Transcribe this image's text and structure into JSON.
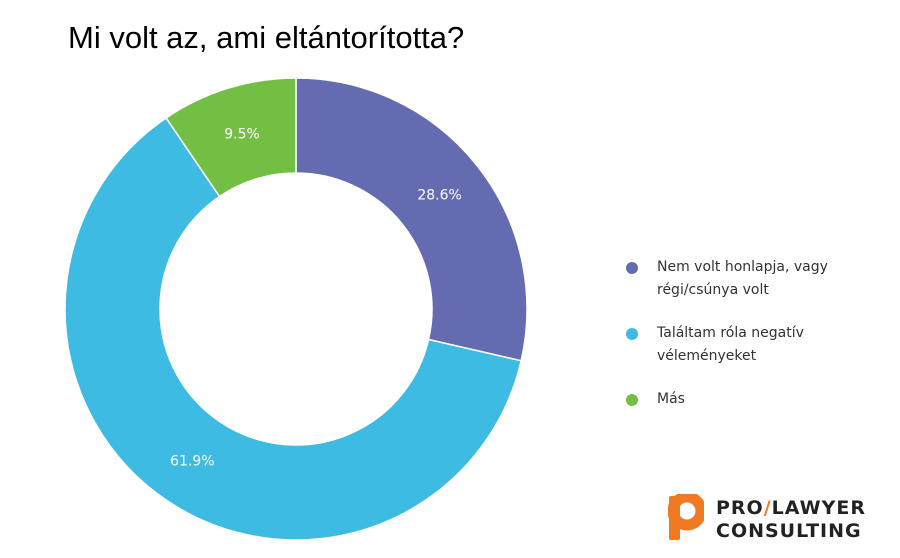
{
  "chart_data": {
    "type": "pie",
    "title": "Mi volt az, ami eltántorította?",
    "categories": [
      "Nem volt honlapja, vagy régi/csúnya volt",
      "Találtam róla negatív véleményeket",
      "Más"
    ],
    "values": [
      28.6,
      61.9,
      9.5
    ],
    "value_labels": [
      "28.6%",
      "61.9%",
      "9.5%"
    ],
    "colors": [
      "#646bb1",
      "#3dbbe3",
      "#72bf44"
    ],
    "legend": "right",
    "donut": true
  },
  "legend_items": [
    {
      "line1": "Nem volt honlapja, vagy",
      "line2": "régi/csúnya volt",
      "color": "#646bb1"
    },
    {
      "line1": "Találtam róla negatív",
      "line2": "véleményeket",
      "color": "#3dbbe3"
    },
    {
      "line1": "Más",
      "line2": "",
      "color": "#72bf44"
    }
  ],
  "logo": {
    "pro": "PRO",
    "slash": "/",
    "lawyer": "LAWYER",
    "consulting": "CONSULTING",
    "accent": "#f07a22"
  }
}
